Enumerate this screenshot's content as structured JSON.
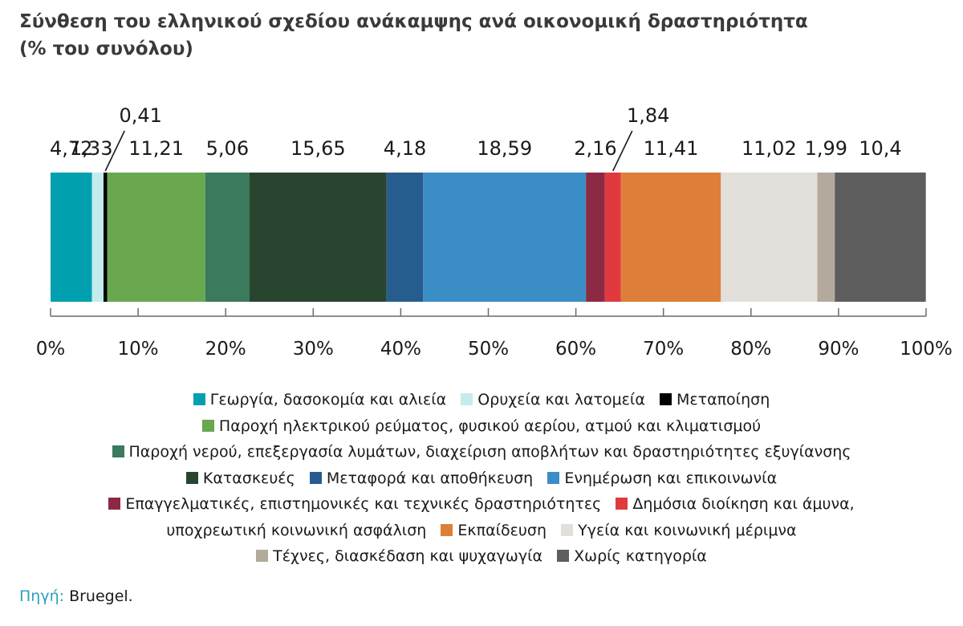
{
  "title_line1": "Σύνθεση του ελληνικού σχεδίου ανάκαμψης ανά οικονομική δραστηριότητα",
  "title_line2": "(% του συνόλου)",
  "chart_data": {
    "type": "bar",
    "orientation": "horizontal",
    "stacked": true,
    "normalized_100": true,
    "xlim": [
      0,
      100
    ],
    "x_ticks": [
      "0%",
      "10%",
      "20%",
      "30%",
      "40%",
      "50%",
      "60%",
      "70%",
      "80%",
      "90%",
      "100%"
    ],
    "grid": false,
    "legend_position": "bottom",
    "series": [
      {
        "name": "Γεωργία, δασοκομία και αλιεία",
        "value": 4.72,
        "label": "4,72",
        "color": "#00a0b0"
      },
      {
        "name": "Ορυχεία και λατομεία",
        "value": 1.33,
        "label": "1,33",
        "color": "#c5ecec"
      },
      {
        "name": "Μεταποίηση",
        "value": 0.41,
        "label": "0,41",
        "color": "#000000"
      },
      {
        "name": "Παροχή ηλεκτρικού ρεύματος, φυσικού αερίου, ατμού και κλιματισμού",
        "value": 11.21,
        "label": "11,21",
        "color": "#6aa84f"
      },
      {
        "name": "Παροχή νερού, επεξεργασία λυμάτων, διαχείριση αποβλήτων και δραστηριότητες εξυγίανσης",
        "value": 5.06,
        "label": "5,06",
        "color": "#3b7a5c"
      },
      {
        "name": "Κατασκευές",
        "value": 15.65,
        "label": "15,65",
        "color": "#27452f"
      },
      {
        "name": "Μεταφορά και αποθήκευση",
        "value": 4.18,
        "label": "4,18",
        "color": "#265d8e"
      },
      {
        "name": "Ενημέρωση και επικοινωνία",
        "value": 18.59,
        "label": "18,59",
        "color": "#3b8ec5"
      },
      {
        "name": "Επαγγελματικές, επιστημονικές και τεχνικές δραστηριότητες",
        "value": 2.16,
        "label": "2,16",
        "color": "#8c2a45"
      },
      {
        "name": "Δημόσια διοίκηση και άμυνα, υποχρεωτική κοινωνική ασφάλιση",
        "value": 1.84,
        "label": "1,84",
        "color": "#e03a3e"
      },
      {
        "name": "Εκπαίδευση",
        "value": 11.41,
        "label": "11,41",
        "color": "#dd7f38"
      },
      {
        "name": "Υγεία και κοινωνική μέριμνα",
        "value": 11.02,
        "label": "11,02",
        "color": "#e3dfdb"
      },
      {
        "name": "Τέχνες, διασκέδαση και ψυχαγωγία",
        "value": 1.99,
        "label": "1,99",
        "color": "#b3aa9d"
      },
      {
        "name": "Χωρίς κατηγορία",
        "value": 10.4,
        "label": "10,4",
        "color": "#5e5e5e"
      }
    ]
  },
  "legend": {
    "line1": [
      "Γεωργία, δασοκομία και αλιεία",
      "Ορυχεία και λατομεία",
      "Μεταποίηση"
    ],
    "line2": [
      "Παροχή ηλεκτρικού ρεύματος, φυσικού αερίου, ατμού και κλιματισμού"
    ],
    "line3": [
      "Παροχή νερού, επεξεργασία λυμάτων, διαχείριση αποβλήτων και δραστηριότητες εξυγίανσης"
    ],
    "line4": [
      "Κατασκευές",
      "Μεταφορά και αποθήκευση",
      "Ενημέρωση και επικοινωνία"
    ],
    "line5_item1": "Επαγγελματικές, επιστημονικές και τεχνικές δραστηριότητες",
    "line5_item2_part1": "Δημόσια διοίκηση και άμυνα,",
    "line6_item2_part2": "υποχρεωτική κοινωνική ασφάλιση",
    "line6": [
      "Εκπαίδευση",
      "Υγεία και κοινωνική μέριμνα"
    ],
    "line7": [
      "Τέχνες, διασκέδαση και ψυχαγωγία",
      "Χωρίς κατηγορία"
    ]
  },
  "source": {
    "label": "Πηγή:",
    "text": "Bruegel."
  }
}
